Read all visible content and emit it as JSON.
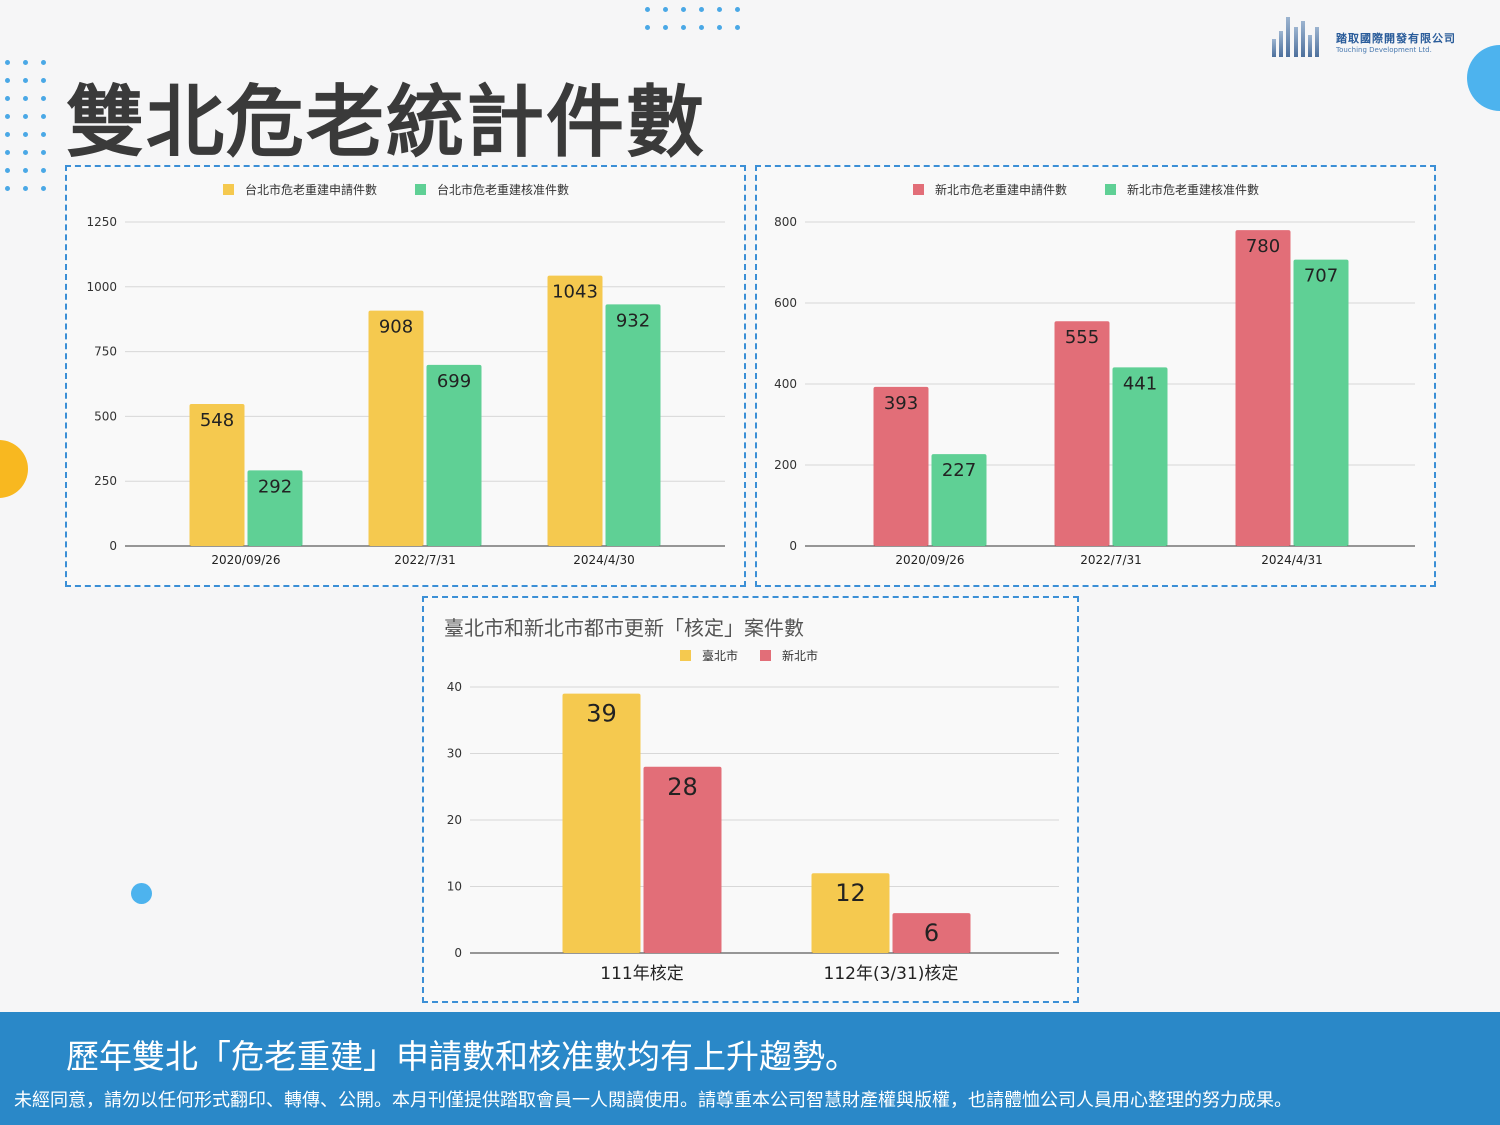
{
  "title": "雙北危老統計件數",
  "logo": {
    "name_cn": "踏取國際開發有限公司",
    "name_en": "Touching Development Ltd."
  },
  "banner": {
    "headline": "歷年雙北「危老重建」申請數和核准數均有上升趨勢。",
    "notice": "未經同意，請勿以任何形式翻印、轉傳、公開。本月刊僅提供踏取會員一人閱讀使用。請尊重本公司智慧財產權與版權，也請體恤公司人員用心整理的努力成果。"
  },
  "colors": {
    "yellow": "#f5c94f",
    "green": "#5fd095",
    "red": "#e26e78",
    "banner": "#2a88c8"
  },
  "chart_data": [
    {
      "type": "bar",
      "title": "",
      "categories": [
        "2020/09/26",
        "2022/7/31",
        "2024/4/30"
      ],
      "series": [
        {
          "name": "台北市危老重建申請件數",
          "color": "#f5c94f",
          "values": [
            548,
            908,
            1043
          ]
        },
        {
          "name": "台北市危老重建核准件數",
          "color": "#5fd095",
          "values": [
            292,
            699,
            932
          ]
        }
      ],
      "ylim": [
        0,
        1250
      ],
      "yticks": [
        0,
        250,
        500,
        750,
        1000,
        1250
      ],
      "legend": "top",
      "grid": true
    },
    {
      "type": "bar",
      "title": "",
      "categories": [
        "2020/09/26",
        "2022/7/31",
        "2024/4/31"
      ],
      "series": [
        {
          "name": "新北市危老重建申請件數",
          "color": "#e26e78",
          "values": [
            393,
            555,
            780
          ]
        },
        {
          "name": "新北市危老重建核准件數",
          "color": "#5fd095",
          "values": [
            227,
            441,
            707
          ]
        }
      ],
      "ylim": [
        0,
        800
      ],
      "yticks": [
        0,
        200,
        400,
        600,
        800
      ],
      "legend": "top",
      "grid": true
    },
    {
      "type": "bar",
      "title": "臺北市和新北市都市更新「核定」案件數",
      "categories": [
        "111年核定",
        "112年(3/31)核定"
      ],
      "series": [
        {
          "name": "臺北市",
          "color": "#f5c94f",
          "values": [
            39,
            12
          ]
        },
        {
          "name": "新北市",
          "color": "#e26e78",
          "values": [
            28,
            6
          ]
        }
      ],
      "ylim": [
        0,
        40
      ],
      "yticks": [
        0,
        10,
        20,
        30,
        40
      ],
      "legend": "top",
      "grid": true
    }
  ]
}
